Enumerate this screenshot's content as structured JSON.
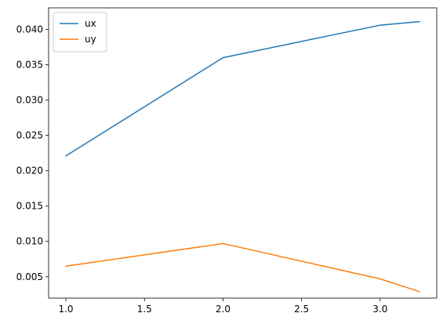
{
  "chart_data": {
    "type": "line",
    "title": "",
    "xlabel": "",
    "ylabel": "",
    "xlim": [
      0.89,
      3.36
    ],
    "ylim": [
      0.00198,
      0.04305
    ],
    "xticks": [
      1.0,
      1.5,
      2.0,
      2.5,
      3.0
    ],
    "xtick_labels": [
      "1.0",
      "1.5",
      "2.0",
      "2.5",
      "3.0"
    ],
    "yticks": [
      0.005,
      0.01,
      0.015,
      0.02,
      0.025,
      0.03,
      0.035,
      0.04
    ],
    "ytick_labels": [
      "0.005",
      "0.010",
      "0.015",
      "0.020",
      "0.025",
      "0.030",
      "0.035",
      "0.040"
    ],
    "grid": false,
    "legend_position": "top-left",
    "series": [
      {
        "name": "ux",
        "color": "#1f77b4",
        "x": [
          1.0,
          2.0,
          3.0,
          3.25
        ],
        "y": [
          0.0221,
          0.036,
          0.0406,
          0.0411
        ]
      },
      {
        "name": "uy",
        "color": "#ff7f0e",
        "x": [
          1.0,
          2.0,
          3.0,
          3.25
        ],
        "y": [
          0.0065,
          0.0097,
          0.0047,
          0.0029
        ]
      }
    ]
  }
}
